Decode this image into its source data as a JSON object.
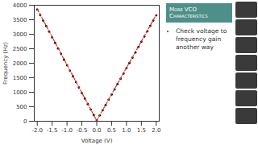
{
  "chart_data": {
    "type": "scatter",
    "x_label": "Voltage (V)",
    "y_label": "Frequency (Hz)",
    "xlim": [
      -2.1,
      2.1
    ],
    "xticks": [
      {
        "value": -2,
        "label": "-2.0"
      },
      -1.5,
      {
        "value": -1,
        "label": "-1.0"
      },
      -0.5,
      {
        "value": 0,
        "label": "0.0"
      },
      0.5,
      {
        "value": 1,
        "label": "1.0"
      },
      1.5,
      {
        "value": 2,
        "label": "2.0"
      }
    ],
    "ylim": [
      0,
      4000
    ],
    "yticks": [
      0,
      500,
      1000,
      1500,
      2000,
      2500,
      3000,
      3500,
      4000
    ],
    "grid": false,
    "series": [
      {
        "type": "scatter",
        "color": "#000000",
        "marker": "o",
        "x": [
          -2.0,
          -1.9,
          -1.8,
          -1.7,
          -1.6,
          -1.5,
          -1.4,
          -1.3,
          -1.2,
          -1.1,
          -1.0,
          -0.9,
          -0.8,
          -0.7,
          -0.6,
          -0.5,
          -0.4,
          -0.3,
          -0.2,
          -0.1,
          0.0,
          0.1,
          0.2,
          0.3,
          0.4,
          0.5,
          0.6,
          0.7,
          0.8,
          0.9,
          1.0,
          1.1,
          1.2,
          1.3,
          1.4,
          1.5,
          1.6,
          1.7,
          1.8,
          1.9,
          2.0
        ],
        "values": [
          3850,
          3660,
          3470,
          3280,
          3090,
          2890,
          2700,
          2510,
          2320,
          2120,
          1930,
          1740,
          1550,
          1350,
          1160,
          970,
          780,
          590,
          400,
          210,
          40,
          200,
          380,
          560,
          740,
          920,
          1100,
          1280,
          1460,
          1640,
          1830,
          2010,
          2190,
          2370,
          2560,
          2740,
          2920,
          3100,
          3290,
          3470,
          3650
        ]
      },
      {
        "type": "line",
        "color": "#e0302a",
        "line_style": "dashed",
        "x": [
          -2.0,
          0.0,
          2.0
        ],
        "values": [
          3870,
          20,
          3670
        ]
      }
    ]
  },
  "slide": {
    "title": "More VCO Characteristics",
    "bullets": [
      "Check voltage to frequency gain another way"
    ]
  }
}
